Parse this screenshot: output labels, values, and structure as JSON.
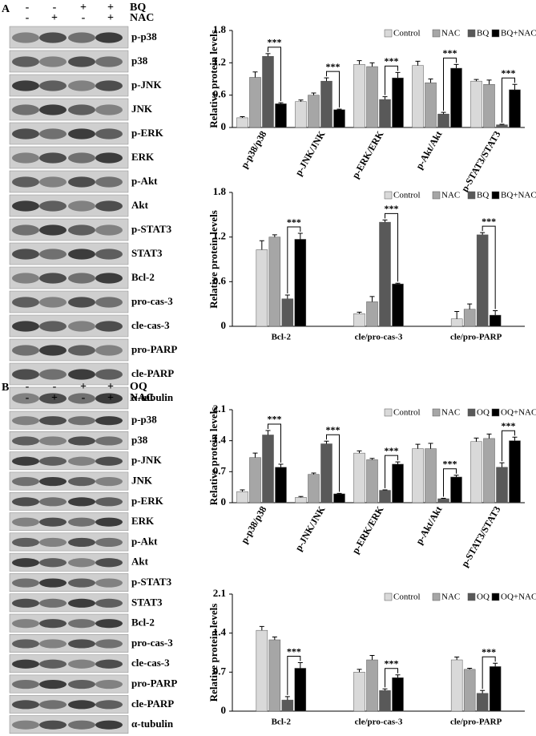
{
  "blots": [
    {
      "panel": "A",
      "treatments": [
        {
          "name": "BQ",
          "signs": [
            "-",
            "-",
            "+",
            "+"
          ]
        },
        {
          "name": "NAC",
          "signs": [
            "-",
            "+",
            "-",
            "+"
          ]
        }
      ],
      "rows": [
        "p-p38",
        "p38",
        "p-JNK",
        "JNK",
        "p-ERK",
        "ERK",
        "p-Akt",
        "Akt",
        "p-STAT3",
        "STAT3",
        "Bcl-2",
        "pro-cas-3",
        "cle-cas-3",
        "pro-PARP",
        "cle-PARP",
        "α-tubulin"
      ]
    },
    {
      "panel": "B",
      "treatments": [
        {
          "name": "OQ",
          "signs": [
            "-",
            "-",
            "+",
            "+"
          ]
        },
        {
          "name": "NAC",
          "signs": [
            "-",
            "+",
            "-",
            "+"
          ]
        }
      ],
      "rows": [
        "p-p38",
        "p38",
        "p-JNK",
        "JNK",
        "p-ERK",
        "ERK",
        "p-Akt",
        "Akt",
        "p-STAT3",
        "STAT3",
        "Bcl-2",
        "pro-cas-3",
        "cle-cas-3",
        "pro-PARP",
        "cle-PARP",
        "α-tubulin"
      ]
    }
  ],
  "chart_data": [
    {
      "type": "bar",
      "y_label": "Relative protein levels",
      "categories": [
        "p-p38/p38",
        "p-JNK/JNK",
        "p-ERK/ERK",
        "p-Akt/Akt",
        "p-STAT3/STAT3"
      ],
      "series": [
        {
          "name": "Control",
          "color": "#d9d9d9",
          "values": [
            0.18,
            0.48,
            1.17,
            1.15,
            0.86
          ],
          "errors": [
            0.02,
            0.03,
            0.07,
            0.08,
            0.03
          ]
        },
        {
          "name": "NAC",
          "color": "#a6a6a6",
          "values": [
            0.93,
            0.6,
            1.13,
            0.83,
            0.8
          ],
          "errors": [
            0.1,
            0.04,
            0.07,
            0.07,
            0.08
          ]
        },
        {
          "name": "BQ",
          "color": "#595959",
          "values": [
            1.32,
            0.86,
            0.52,
            0.25,
            0.05
          ],
          "errors": [
            0.05,
            0.06,
            0.05,
            0.03,
            0.01
          ]
        },
        {
          "name": "BQ+NAC",
          "color": "#000000",
          "values": [
            0.44,
            0.33,
            0.92,
            1.1,
            0.7
          ],
          "errors": [
            0.02,
            0.01,
            0.1,
            0.07,
            0.1
          ]
        }
      ],
      "significance_labels": [
        "***",
        "***",
        "***",
        "***",
        "***"
      ],
      "ylim": [
        0,
        1.8
      ],
      "yticks": [
        0,
        0.6,
        1.2,
        1.8
      ]
    },
    {
      "type": "bar",
      "y_label": "Relative protein levels",
      "categories": [
        "Bcl-2",
        "cle/pro-cas-3",
        "cle/pro-PARP"
      ],
      "series": [
        {
          "name": "Control",
          "color": "#d9d9d9",
          "values": [
            1.03,
            0.17,
            0.1
          ],
          "errors": [
            0.12,
            0.02,
            0.1
          ]
        },
        {
          "name": "NAC",
          "color": "#a6a6a6",
          "values": [
            1.2,
            0.33,
            0.23
          ],
          "errors": [
            0.03,
            0.07,
            0.07
          ]
        },
        {
          "name": "BQ",
          "color": "#595959",
          "values": [
            0.37,
            1.4,
            1.23
          ],
          "errors": [
            0.05,
            0.03,
            0.03
          ]
        },
        {
          "name": "BQ+NAC",
          "color": "#000000",
          "values": [
            1.17,
            0.57,
            0.15
          ],
          "errors": [
            0.08,
            0.01,
            0.06
          ]
        }
      ],
      "significance_labels": [
        "***",
        "***",
        "***"
      ],
      "ylim": [
        0,
        1.8
      ],
      "yticks": [
        0,
        0.6,
        1.2,
        1.8
      ]
    },
    {
      "type": "bar",
      "y_label": "Relative protein levels",
      "categories": [
        "p-p38/p38",
        "p-JNK/JNK",
        "p-ERK/ERK",
        "p-Akt/Akt",
        "p-STAT3/STAT3"
      ],
      "series": [
        {
          "name": "Control",
          "color": "#d9d9d9",
          "values": [
            0.25,
            0.12,
            1.12,
            1.22,
            1.38
          ],
          "errors": [
            0.04,
            0.02,
            0.05,
            0.1,
            0.08
          ]
        },
        {
          "name": "NAC",
          "color": "#a6a6a6",
          "values": [
            1.02,
            0.64,
            0.97,
            1.22,
            1.45
          ],
          "errors": [
            0.1,
            0.03,
            0.03,
            0.12,
            0.1
          ]
        },
        {
          "name": "OQ",
          "color": "#595959",
          "values": [
            1.53,
            1.33,
            0.28,
            0.09,
            0.8
          ],
          "errors": [
            0.1,
            0.06,
            0.01,
            0.01,
            0.1
          ]
        },
        {
          "name": "OQ+NAC",
          "color": "#000000",
          "values": [
            0.8,
            0.2,
            0.87,
            0.58,
            1.4
          ],
          "errors": [
            0.07,
            0.01,
            0.05,
            0.04,
            0.08
          ]
        }
      ],
      "significance_labels": [
        "***",
        "***",
        "***",
        "***",
        "***"
      ],
      "ylim": [
        0,
        2.1
      ],
      "yticks": [
        0,
        0.7,
        1.4,
        2.1
      ]
    },
    {
      "type": "bar",
      "y_label": "Relative protein levels",
      "categories": [
        "Bcl-2",
        "cle/pro-cas-3",
        "cle/pro-PARP"
      ],
      "series": [
        {
          "name": "Control",
          "color": "#d9d9d9",
          "values": [
            1.45,
            0.7,
            0.92
          ],
          "errors": [
            0.07,
            0.05,
            0.05
          ]
        },
        {
          "name": "NAC",
          "color": "#a6a6a6",
          "values": [
            1.28,
            0.92,
            0.75
          ],
          "errors": [
            0.05,
            0.08,
            0.02
          ]
        },
        {
          "name": "OQ",
          "color": "#595959",
          "values": [
            0.2,
            0.37,
            0.32
          ],
          "errors": [
            0.06,
            0.03,
            0.05
          ]
        },
        {
          "name": "OQ+NAC",
          "color": "#000000",
          "values": [
            0.77,
            0.6,
            0.8
          ],
          "errors": [
            0.1,
            0.05,
            0.06
          ]
        }
      ],
      "significance_labels": [
        "***",
        "***",
        "***"
      ],
      "ylim": [
        0,
        2.1
      ],
      "yticks": [
        0,
        0.7,
        1.4,
        2.1
      ]
    }
  ]
}
